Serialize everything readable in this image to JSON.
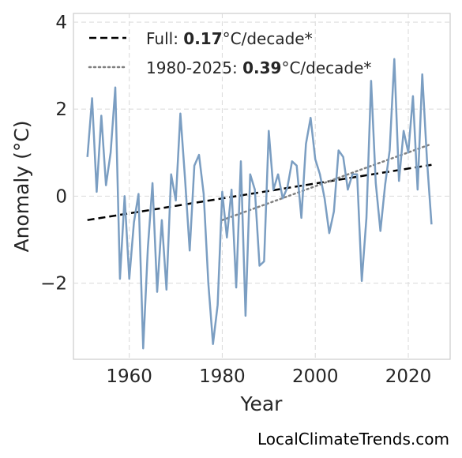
{
  "chart_data": {
    "type": "line",
    "title": "",
    "xlabel": "Year",
    "ylabel": "Anomaly (°C)",
    "xlim": [
      1948,
      2029
    ],
    "ylim": [
      -3.75,
      4.2
    ],
    "xticks": [
      1960,
      1980,
      2000,
      2020
    ],
    "yticks": [
      -2,
      0,
      2,
      4
    ],
    "ytick_labels": [
      "−2",
      "0",
      "2",
      "4"
    ],
    "grid": true,
    "legend_position": "top-left",
    "colors": {
      "series": "#7b9ec2",
      "full_trend": "#000000",
      "recent_trend": "#808080"
    },
    "series": [
      {
        "name": "",
        "x": [
          1951,
          1952,
          1953,
          1954,
          1955,
          1956,
          1957,
          1958,
          1959,
          1960,
          1961,
          1962,
          1963,
          1964,
          1965,
          1966,
          1967,
          1968,
          1969,
          1970,
          1971,
          1972,
          1973,
          1974,
          1975,
          1976,
          1977,
          1978,
          1979,
          1980,
          1981,
          1982,
          1983,
          1984,
          1985,
          1986,
          1987,
          1988,
          1989,
          1990,
          1991,
          1992,
          1993,
          1994,
          1995,
          1996,
          1997,
          1998,
          1999,
          2000,
          2001,
          2002,
          2003,
          2004,
          2005,
          2006,
          2007,
          2008,
          2009,
          2010,
          2011,
          2012,
          2013,
          2014,
          2015,
          2016,
          2017,
          2018,
          2019,
          2020,
          2021,
          2022,
          2023,
          2024,
          2025
        ],
        "y": [
          0.9,
          2.25,
          0.1,
          1.85,
          0.25,
          1.0,
          2.5,
          -1.9,
          0.0,
          -1.9,
          -0.6,
          0.05,
          -3.5,
          -1.2,
          0.3,
          -2.2,
          -0.55,
          -2.15,
          0.5,
          -0.1,
          1.9,
          0.4,
          -1.25,
          0.7,
          0.95,
          0.05,
          -2.0,
          -3.4,
          -2.5,
          0.1,
          -0.95,
          0.15,
          -2.1,
          0.8,
          -2.75,
          0.5,
          0.15,
          -1.6,
          -1.5,
          1.5,
          0.15,
          0.5,
          -0.05,
          0.2,
          0.8,
          0.7,
          -0.5,
          1.2,
          1.8,
          0.85,
          0.5,
          -0.05,
          -0.85,
          -0.35,
          1.05,
          0.9,
          0.15,
          0.5,
          0.5,
          -1.95,
          -0.5,
          2.65,
          0.3,
          -0.8,
          0.25,
          1.05,
          3.15,
          0.35,
          1.5,
          1.0,
          2.3,
          0.15,
          2.8,
          0.85,
          -0.65
        ]
      }
    ],
    "trend_lines": [
      {
        "name": "Full",
        "x": [
          1951,
          2025
        ],
        "y": [
          -0.55,
          0.72
        ],
        "style": "dashed"
      },
      {
        "name": "1980-2025",
        "x": [
          1980,
          2025
        ],
        "y": [
          -0.55,
          1.2
        ],
        "style": "dotted"
      }
    ],
    "legend": [
      {
        "prefix": "Full: ",
        "value": "0.17",
        "suffix": "°C/decade*"
      },
      {
        "prefix": "1980-2025: ",
        "value": "0.39",
        "suffix": "°C/decade*"
      }
    ]
  },
  "credit": "LocalClimateTrends.com"
}
